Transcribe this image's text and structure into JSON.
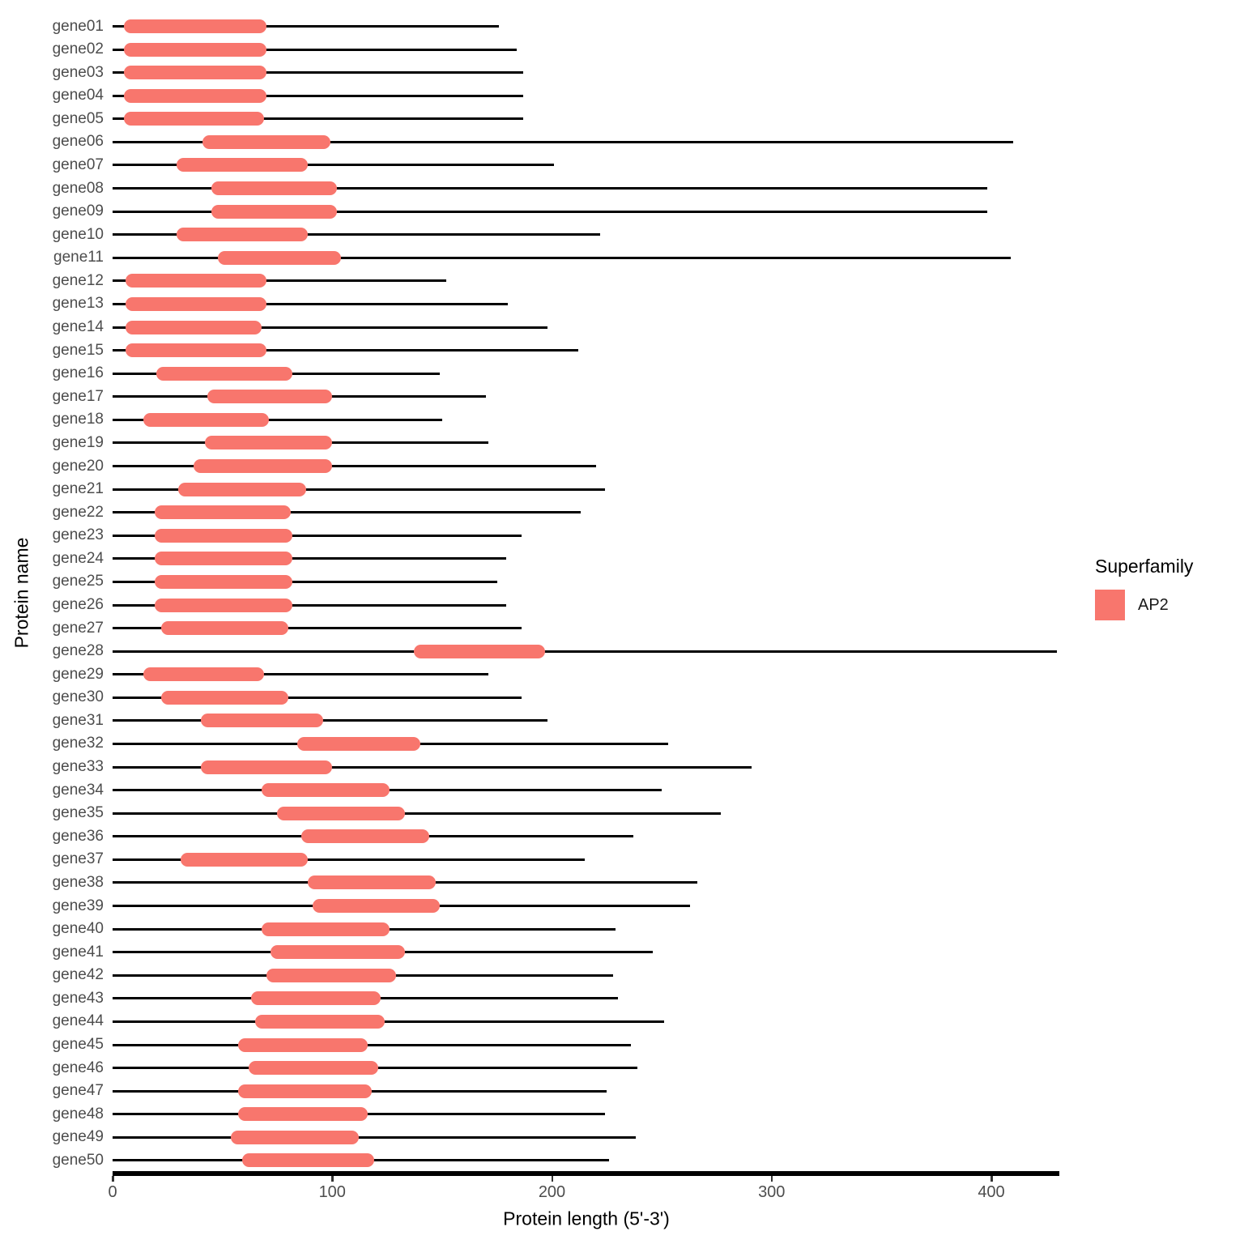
{
  "chart_data": {
    "type": "bar",
    "subtype": "protein-domain-ranges",
    "title": "",
    "xlabel": "Protein length (5'-3')",
    "ylabel": "Protein name",
    "x_ticks": [
      0,
      100,
      200,
      300,
      400
    ],
    "xlim": [
      0,
      431
    ],
    "grid": false,
    "legend": {
      "title": "Superfamily",
      "position": "right",
      "entries": [
        {
          "label": "AP2",
          "color": "#F8766D"
        }
      ]
    },
    "colors": {
      "domain_fill": "#F8766D",
      "backbone_line": "#000000",
      "axis_text": "#4d4d4d",
      "axis_title_text": "#000000"
    },
    "genes": [
      {
        "name": "gene01",
        "begin": 0,
        "end": 176,
        "domain": [
          5,
          70
        ],
        "domain_type": "AP2"
      },
      {
        "name": "gene02",
        "begin": 0,
        "end": 184,
        "domain": [
          5,
          70
        ],
        "domain_type": "AP2"
      },
      {
        "name": "gene03",
        "begin": 0,
        "end": 187,
        "domain": [
          5,
          70
        ],
        "domain_type": "AP2"
      },
      {
        "name": "gene04",
        "begin": 0,
        "end": 187,
        "domain": [
          5,
          70
        ],
        "domain_type": "AP2"
      },
      {
        "name": "gene05",
        "begin": 0,
        "end": 187,
        "domain": [
          5,
          69
        ],
        "domain_type": "AP2"
      },
      {
        "name": "gene06",
        "begin": 0,
        "end": 410,
        "domain": [
          41,
          99
        ],
        "domain_type": "AP2"
      },
      {
        "name": "gene07",
        "begin": 0,
        "end": 201,
        "domain": [
          29,
          89
        ],
        "domain_type": "AP2"
      },
      {
        "name": "gene08",
        "begin": 0,
        "end": 398,
        "domain": [
          45,
          102
        ],
        "domain_type": "AP2"
      },
      {
        "name": "gene09",
        "begin": 0,
        "end": 398,
        "domain": [
          45,
          102
        ],
        "domain_type": "AP2"
      },
      {
        "name": "gene10",
        "begin": 0,
        "end": 222,
        "domain": [
          29,
          89
        ],
        "domain_type": "AP2"
      },
      {
        "name": "gene11",
        "begin": 0,
        "end": 409,
        "domain": [
          48,
          104
        ],
        "domain_type": "AP2"
      },
      {
        "name": "gene12",
        "begin": 0,
        "end": 152,
        "domain": [
          6,
          70
        ],
        "domain_type": "AP2"
      },
      {
        "name": "gene13",
        "begin": 0,
        "end": 180,
        "domain": [
          6,
          70
        ],
        "domain_type": "AP2"
      },
      {
        "name": "gene14",
        "begin": 0,
        "end": 198,
        "domain": [
          6,
          68
        ],
        "domain_type": "AP2"
      },
      {
        "name": "gene15",
        "begin": 0,
        "end": 212,
        "domain": [
          6,
          70
        ],
        "domain_type": "AP2"
      },
      {
        "name": "gene16",
        "begin": 0,
        "end": 149,
        "domain": [
          20,
          82
        ],
        "domain_type": "AP2"
      },
      {
        "name": "gene17",
        "begin": 0,
        "end": 170,
        "domain": [
          43,
          100
        ],
        "domain_type": "AP2"
      },
      {
        "name": "gene18",
        "begin": 0,
        "end": 150,
        "domain": [
          14,
          71
        ],
        "domain_type": "AP2"
      },
      {
        "name": "gene19",
        "begin": 0,
        "end": 171,
        "domain": [
          42,
          100
        ],
        "domain_type": "AP2"
      },
      {
        "name": "gene20",
        "begin": 0,
        "end": 220,
        "domain": [
          37,
          100
        ],
        "domain_type": "AP2"
      },
      {
        "name": "gene21",
        "begin": 0,
        "end": 224,
        "domain": [
          30,
          88
        ],
        "domain_type": "AP2"
      },
      {
        "name": "gene22",
        "begin": 0,
        "end": 213,
        "domain": [
          19,
          81
        ],
        "domain_type": "AP2"
      },
      {
        "name": "gene23",
        "begin": 0,
        "end": 186,
        "domain": [
          19,
          82
        ],
        "domain_type": "AP2"
      },
      {
        "name": "gene24",
        "begin": 0,
        "end": 179,
        "domain": [
          19,
          82
        ],
        "domain_type": "AP2"
      },
      {
        "name": "gene25",
        "begin": 0,
        "end": 175,
        "domain": [
          19,
          82
        ],
        "domain_type": "AP2"
      },
      {
        "name": "gene26",
        "begin": 0,
        "end": 179,
        "domain": [
          19,
          82
        ],
        "domain_type": "AP2"
      },
      {
        "name": "gene27",
        "begin": 0,
        "end": 186,
        "domain": [
          22,
          80
        ],
        "domain_type": "AP2"
      },
      {
        "name": "gene28",
        "begin": 0,
        "end": 430,
        "domain": [
          137,
          197
        ],
        "domain_type": "AP2"
      },
      {
        "name": "gene29",
        "begin": 0,
        "end": 171,
        "domain": [
          14,
          69
        ],
        "domain_type": "AP2"
      },
      {
        "name": "gene30",
        "begin": 0,
        "end": 186,
        "domain": [
          22,
          80
        ],
        "domain_type": "AP2"
      },
      {
        "name": "gene31",
        "begin": 0,
        "end": 198,
        "domain": [
          40,
          96
        ],
        "domain_type": "AP2"
      },
      {
        "name": "gene32",
        "begin": 0,
        "end": 253,
        "domain": [
          84,
          140
        ],
        "domain_type": "AP2"
      },
      {
        "name": "gene33",
        "begin": 0,
        "end": 291,
        "domain": [
          40,
          100
        ],
        "domain_type": "AP2"
      },
      {
        "name": "gene34",
        "begin": 0,
        "end": 250,
        "domain": [
          68,
          126
        ],
        "domain_type": "AP2"
      },
      {
        "name": "gene35",
        "begin": 0,
        "end": 277,
        "domain": [
          75,
          133
        ],
        "domain_type": "AP2"
      },
      {
        "name": "gene36",
        "begin": 0,
        "end": 237,
        "domain": [
          86,
          144
        ],
        "domain_type": "AP2"
      },
      {
        "name": "gene37",
        "begin": 0,
        "end": 215,
        "domain": [
          31,
          89
        ],
        "domain_type": "AP2"
      },
      {
        "name": "gene38",
        "begin": 0,
        "end": 266,
        "domain": [
          89,
          147
        ],
        "domain_type": "AP2"
      },
      {
        "name": "gene39",
        "begin": 0,
        "end": 263,
        "domain": [
          91,
          149
        ],
        "domain_type": "AP2"
      },
      {
        "name": "gene40",
        "begin": 0,
        "end": 229,
        "domain": [
          68,
          126
        ],
        "domain_type": "AP2"
      },
      {
        "name": "gene41",
        "begin": 0,
        "end": 246,
        "domain": [
          72,
          133
        ],
        "domain_type": "AP2"
      },
      {
        "name": "gene42",
        "begin": 0,
        "end": 228,
        "domain": [
          70,
          129
        ],
        "domain_type": "AP2"
      },
      {
        "name": "gene43",
        "begin": 0,
        "end": 230,
        "domain": [
          63,
          122
        ],
        "domain_type": "AP2"
      },
      {
        "name": "gene44",
        "begin": 0,
        "end": 251,
        "domain": [
          65,
          124
        ],
        "domain_type": "AP2"
      },
      {
        "name": "gene45",
        "begin": 0,
        "end": 236,
        "domain": [
          57,
          116
        ],
        "domain_type": "AP2"
      },
      {
        "name": "gene46",
        "begin": 0,
        "end": 239,
        "domain": [
          62,
          121
        ],
        "domain_type": "AP2"
      },
      {
        "name": "gene47",
        "begin": 0,
        "end": 225,
        "domain": [
          57,
          118
        ],
        "domain_type": "AP2"
      },
      {
        "name": "gene48",
        "begin": 0,
        "end": 224,
        "domain": [
          57,
          116
        ],
        "domain_type": "AP2"
      },
      {
        "name": "gene49",
        "begin": 0,
        "end": 238,
        "domain": [
          54,
          112
        ],
        "domain_type": "AP2"
      },
      {
        "name": "gene50",
        "begin": 0,
        "end": 226,
        "domain": [
          59,
          119
        ],
        "domain_type": "AP2"
      }
    ]
  }
}
